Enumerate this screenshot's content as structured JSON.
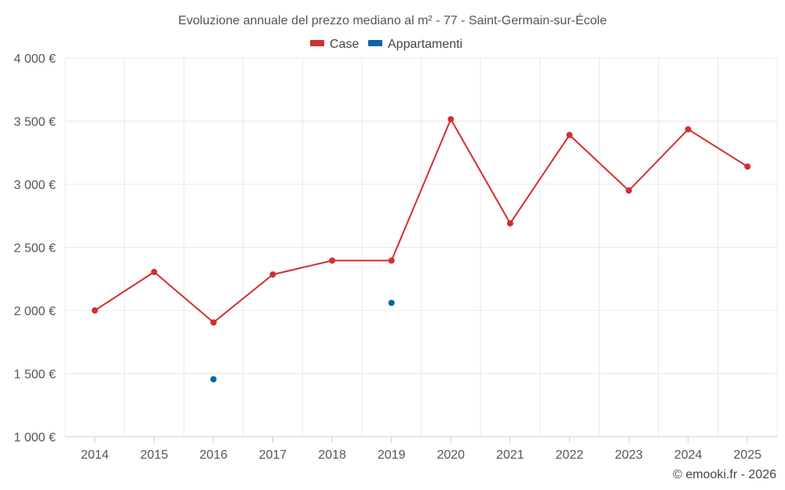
{
  "chart_data": {
    "type": "line",
    "title": "Evoluzione annuale del prezzo mediano al m² - 77 - Saint-Germain-sur-École",
    "categories": [
      "2014",
      "2015",
      "2016",
      "2017",
      "2018",
      "2019",
      "2020",
      "2021",
      "2022",
      "2023",
      "2024",
      "2025"
    ],
    "series": [
      {
        "name": "Case",
        "color": "#d32f2f",
        "values": [
          2000,
          2305,
          1905,
          2285,
          2395,
          2395,
          3515,
          2690,
          3390,
          2950,
          3435,
          3140
        ]
      },
      {
        "name": "Appartamenti",
        "color": "#0a66a0",
        "values": [
          null,
          null,
          1455,
          null,
          null,
          2060,
          null,
          null,
          null,
          null,
          null,
          null
        ]
      }
    ],
    "ylim": [
      1000,
      4000
    ],
    "yticks": [
      1000,
      1500,
      2000,
      2500,
      3000,
      3500,
      4000
    ],
    "ytick_labels": [
      "1 000 €",
      "1 500 €",
      "2 000 €",
      "2 500 €",
      "3 000 €",
      "3 500 €",
      "4 000 €"
    ],
    "xlabel": "",
    "ylabel": "",
    "grid": true,
    "legend_position": "top-center"
  },
  "credit": "© emooki.fr - 2026"
}
